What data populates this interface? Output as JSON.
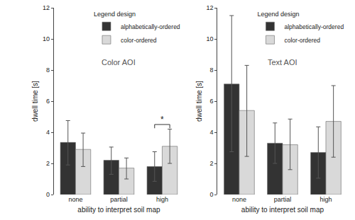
{
  "chart_data": [
    {
      "type": "bar",
      "title": "Color AOI",
      "x_label": "ability to interpret soil map",
      "y_label": "dwell time [s]",
      "categories": [
        "none",
        "partial",
        "high"
      ],
      "series": [
        {
          "name": "alphabetically-ordered",
          "color": "#333333",
          "values": [
            3.35,
            2.2,
            1.8
          ],
          "error_low": [
            1.9,
            1.3,
            0.85
          ],
          "error_high": [
            4.75,
            3.05,
            2.75
          ]
        },
        {
          "name": "color-ordered",
          "color": "#d9d9d9",
          "values": [
            2.9,
            1.7,
            3.1
          ],
          "error_low": [
            1.8,
            1.0,
            2.0
          ],
          "error_high": [
            3.95,
            2.35,
            4.2
          ]
        }
      ],
      "ylim": [
        0,
        12
      ],
      "yticks": [
        0,
        2,
        4,
        6,
        8,
        10,
        12
      ],
      "grid": false,
      "legend": "top right",
      "legend_title": "Legend design",
      "annotations": [
        {
          "text": "*",
          "x": "high",
          "y": 4.5
        }
      ]
    },
    {
      "type": "bar",
      "title": "Text AOI",
      "x_label": "ability to interpret soil map",
      "y_label": "dwell time [s]",
      "categories": [
        "none",
        "partial",
        "high"
      ],
      "series": [
        {
          "name": "alphabetically-ordered",
          "color": "#333333",
          "values": [
            7.1,
            3.3,
            2.7
          ],
          "error_low": [
            2.75,
            2.0,
            1.05
          ],
          "error_high": [
            11.5,
            4.6,
            4.35
          ]
        },
        {
          "name": "color-ordered",
          "color": "#d9d9d9",
          "values": [
            5.4,
            3.2,
            4.7
          ],
          "error_low": [
            2.45,
            1.6,
            2.4
          ],
          "error_high": [
            8.3,
            4.85,
            7.0
          ]
        }
      ],
      "ylim": [
        0,
        12
      ],
      "yticks": [
        0,
        2,
        4,
        6,
        8,
        10,
        12
      ],
      "grid": false,
      "legend": "top right",
      "legend_title": "Legend design"
    }
  ]
}
